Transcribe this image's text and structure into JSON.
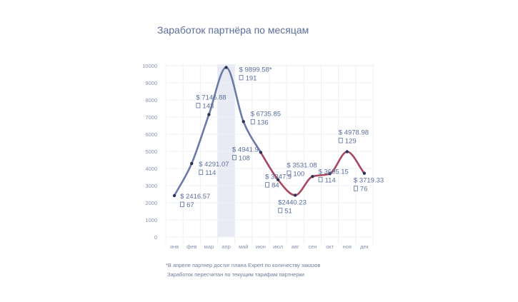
{
  "chart_data": {
    "type": "line",
    "title": "Заработок партнёра по месяцам",
    "categories": [
      "янв",
      "фев",
      "мар",
      "апр",
      "май",
      "июн",
      "июл",
      "авг",
      "сен",
      "окт",
      "ноя",
      "дек"
    ],
    "y_ticks": [
      "0",
      "1000",
      "2000",
      "3000",
      "4000",
      "5000",
      "6000",
      "7000",
      "8000",
      "9000",
      "10000"
    ],
    "ylim": [
      0,
      10000
    ],
    "grid": true,
    "highlight_category": "апр",
    "colors": {
      "line_first": "#6b7aa6",
      "line_second": "#a8485e",
      "point": "#2a3556",
      "highlight": "#e8ebf4"
    },
    "series": [
      {
        "values": [
          2416.57,
          4291.07,
          7146.88,
          9899.58,
          6735.85,
          4941.9,
          3347.9,
          2440.23,
          3531.08,
          3695.15,
          4978.98,
          3719.33
        ]
      }
    ],
    "data_labels": [
      {
        "amount": "$ 2416.57",
        "count": "67"
      },
      {
        "amount": "$ 4291.07",
        "count": "114"
      },
      {
        "amount": "$ 7146.88",
        "count": "143"
      },
      {
        "amount": "$ 9899.58*",
        "count": "191"
      },
      {
        "amount": "$ 6735.85",
        "count": "136"
      },
      {
        "amount": "$ 4941.9",
        "count": "108"
      },
      {
        "amount": "$ 3347.9",
        "count": "84"
      },
      {
        "amount": "$2440.23",
        "count": "51"
      },
      {
        "amount": "$ 3531.08",
        "count": "100"
      },
      {
        "amount": "$ 3695.15",
        "count": "114"
      },
      {
        "amount": "$ 4978.98",
        "count": "129"
      },
      {
        "amount": "$ 3719.33",
        "count": "76"
      }
    ],
    "count_icon": "document-icon",
    "footnotes": [
      "*В апреле партнер достиг плана Expert по количеству заказов",
      "Заработок пересчитан по текущим тарифам партнерки"
    ]
  }
}
